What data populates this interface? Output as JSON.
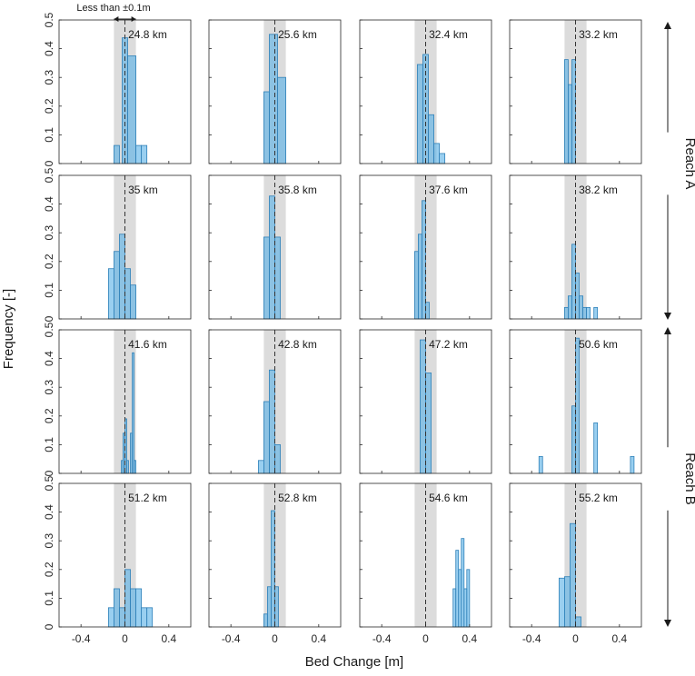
{
  "chart_data": {
    "type": "bar",
    "figure_type": "histogram_grid",
    "xlabel": "Bed Change [m]",
    "ylabel": "Frequency [-]",
    "xlim": [
      -0.6,
      0.6
    ],
    "ylim": [
      0,
      0.5
    ],
    "xticks": [
      -0.4,
      0,
      0.4
    ],
    "xtick_labels": [
      "-0.4",
      "0",
      "0.4"
    ],
    "yticks": [
      0,
      0.1,
      0.2,
      0.3,
      0.4,
      0.5
    ],
    "ytick_labels": [
      "0",
      "0.1",
      "0.2",
      "0.3",
      "0.4",
      "0.5"
    ],
    "tolerance_band": [
      -0.1,
      0.1
    ],
    "annotation": "Less than ±0.1m",
    "reach_labels": [
      {
        "label": "Reach A",
        "rows": [
          0,
          1
        ]
      },
      {
        "label": "Reach B",
        "rows": [
          2,
          3
        ]
      }
    ],
    "panels": [
      {
        "title": "24.8 km",
        "bins": [
          [
            -0.1,
            -0.05,
            0.063
          ],
          [
            -0.05,
            0,
            0.0
          ],
          [
            -0.025,
            0.025,
            0.438
          ],
          [
            0.025,
            0.1,
            0.375
          ],
          [
            0.1,
            0.15,
            0.063
          ],
          [
            0.15,
            0.2,
            0.063
          ]
        ]
      },
      {
        "title": "25.6 km",
        "bins": [
          [
            -0.1,
            -0.05,
            0.25
          ],
          [
            -0.05,
            0.025,
            0.45
          ],
          [
            0.025,
            0.1,
            0.3
          ]
        ]
      },
      {
        "title": "32.4 km",
        "bins": [
          [
            -0.075,
            -0.025,
            0.345
          ],
          [
            -0.025,
            0.025,
            0.38
          ],
          [
            0.025,
            0.075,
            0.17
          ],
          [
            0.075,
            0.125,
            0.07
          ],
          [
            0.125,
            0.175,
            0.035
          ]
        ]
      },
      {
        "title": "33.2 km",
        "bins": [
          [
            -0.1,
            -0.067,
            0.362
          ],
          [
            -0.067,
            -0.033,
            0.275
          ],
          [
            -0.033,
            0.0,
            0.362
          ]
        ]
      },
      {
        "title": "35 km",
        "bins": [
          [
            -0.15,
            -0.1,
            0.175
          ],
          [
            -0.1,
            -0.05,
            0.235
          ],
          [
            -0.05,
            0.0,
            0.295
          ],
          [
            0.0,
            0.05,
            0.175
          ],
          [
            0.05,
            0.1,
            0.118
          ]
        ]
      },
      {
        "title": "35.8 km",
        "bins": [
          [
            -0.1,
            -0.05,
            0.285
          ],
          [
            -0.05,
            0.0,
            0.428
          ],
          [
            0.0,
            0.05,
            0.285
          ]
        ]
      },
      {
        "title": "37.6 km",
        "bins": [
          [
            -0.1,
            -0.067,
            0.235
          ],
          [
            -0.067,
            -0.033,
            0.295
          ],
          [
            -0.033,
            0.0,
            0.412
          ],
          [
            0.0,
            0.033,
            0.058
          ]
        ]
      },
      {
        "title": "38.2 km",
        "bins": [
          [
            -0.1,
            -0.067,
            0.04
          ],
          [
            -0.067,
            -0.033,
            0.08
          ],
          [
            -0.033,
            0.0,
            0.26
          ],
          [
            0.0,
            0.033,
            0.16
          ],
          [
            0.033,
            0.067,
            0.08
          ],
          [
            0.067,
            0.1,
            0.04
          ],
          [
            0.1,
            0.133,
            0.04
          ],
          [
            0.133,
            0.167,
            0.0
          ],
          [
            0.167,
            0.2,
            0.04
          ]
        ]
      },
      {
        "title": "41.6 km",
        "bins": [
          [
            -0.033,
            -0.017,
            0.045
          ],
          [
            -0.017,
            0.0,
            0.14
          ],
          [
            0.0,
            0.017,
            0.19
          ],
          [
            0.017,
            0.033,
            0.045
          ],
          [
            0.033,
            0.05,
            0.0
          ],
          [
            0.05,
            0.067,
            0.14
          ],
          [
            0.067,
            0.083,
            0.42
          ],
          [
            0.083,
            0.1,
            0.045
          ]
        ]
      },
      {
        "title": "42.8 km",
        "bins": [
          [
            -0.15,
            -0.1,
            0.045
          ],
          [
            -0.1,
            -0.05,
            0.25
          ],
          [
            -0.05,
            0.0,
            0.36
          ],
          [
            0.0,
            0.05,
            0.1
          ]
        ]
      },
      {
        "title": "47.2 km",
        "bins": [
          [
            -0.05,
            0.0,
            0.465
          ],
          [
            0.0,
            0.05,
            0.35
          ]
        ]
      },
      {
        "title": "50.6 km",
        "bins": [
          [
            -0.333,
            -0.3,
            0.059
          ],
          [
            -0.033,
            0.0,
            0.235
          ],
          [
            0.0,
            0.033,
            0.471
          ],
          [
            0.167,
            0.2,
            0.176
          ],
          [
            0.2,
            0.233,
            0.0
          ],
          [
            0.4,
            0.433,
            0.0
          ],
          [
            0.5,
            0.533,
            0.059
          ]
        ]
      },
      {
        "title": "51.2 km",
        "bins": [
          [
            -0.15,
            -0.1,
            0.067
          ],
          [
            -0.1,
            -0.05,
            0.133
          ],
          [
            -0.05,
            0.0,
            0.067
          ],
          [
            0.0,
            0.05,
            0.2
          ],
          [
            0.05,
            0.1,
            0.133
          ],
          [
            0.1,
            0.15,
            0.133
          ],
          [
            0.15,
            0.2,
            0.067
          ],
          [
            0.2,
            0.25,
            0.067
          ]
        ]
      },
      {
        "title": "52.8 km",
        "bins": [
          [
            -0.133,
            -0.1,
            0.0
          ],
          [
            -0.1,
            -0.067,
            0.045
          ],
          [
            -0.067,
            -0.033,
            0.14
          ],
          [
            -0.033,
            0.0,
            0.405
          ],
          [
            0.0,
            0.033,
            0.14
          ]
        ]
      },
      {
        "title": "54.6 km",
        "bins": [
          [
            0.25,
            0.275,
            0.133
          ],
          [
            0.275,
            0.3,
            0.267
          ],
          [
            0.3,
            0.325,
            0.2
          ],
          [
            0.325,
            0.35,
            0.308
          ],
          [
            0.35,
            0.375,
            0.133
          ],
          [
            0.375,
            0.4,
            0.2
          ]
        ]
      },
      {
        "title": "55.2 km",
        "bins": [
          [
            -0.15,
            -0.1,
            0.17
          ],
          [
            -0.1,
            -0.05,
            0.175
          ],
          [
            -0.05,
            0.0,
            0.36
          ],
          [
            0.0,
            0.05,
            0.035
          ]
        ]
      }
    ]
  }
}
